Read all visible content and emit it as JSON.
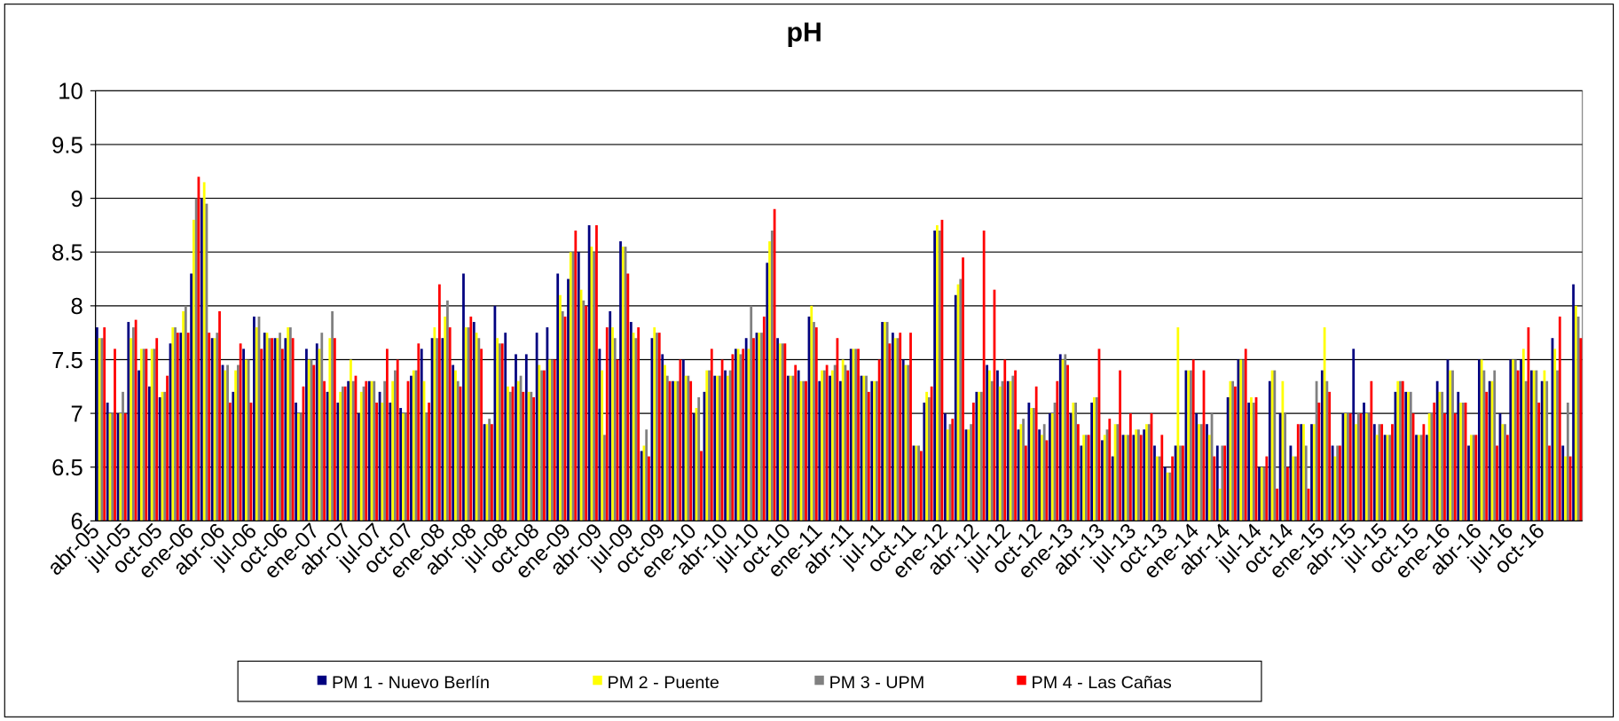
{
  "chart_data": {
    "type": "bar",
    "title": "pH",
    "categories": [
      "abr-05",
      null,
      null,
      "jul-05",
      null,
      null,
      "oct-05",
      null,
      null,
      "ene-06",
      null,
      null,
      "abr-06",
      null,
      null,
      "jul-06",
      null,
      null,
      "oct-06",
      null,
      null,
      "ene-07",
      null,
      null,
      "abr-07",
      null,
      null,
      "jul-07",
      null,
      null,
      "oct-07",
      null,
      null,
      "ene-08",
      null,
      null,
      "abr-08",
      null,
      null,
      "jul-08",
      null,
      null,
      "oct-08",
      null,
      null,
      "ene-09",
      null,
      null,
      "abr-09",
      null,
      null,
      "jul-09",
      null,
      null,
      "oct-09",
      null,
      null,
      "ene-10",
      null,
      null,
      "abr-10",
      null,
      null,
      "jul-10",
      null,
      null,
      "oct-10",
      null,
      null,
      "ene-11",
      null,
      null,
      "abr-11",
      null,
      null,
      "jul-11",
      null,
      null,
      "oct-11",
      null,
      null,
      "ene-12",
      null,
      null,
      "abr-12",
      null,
      null,
      "jul-12",
      null,
      null,
      "oct-12",
      null,
      null,
      "ene-13",
      null,
      null,
      "abr-13",
      null,
      null,
      "jul-13",
      null,
      null,
      "oct-13",
      null,
      null,
      "ene-14",
      null,
      null,
      "abr-14",
      null,
      null,
      "jul-14",
      null,
      null,
      "oct-14",
      null,
      null,
      "ene-15",
      null,
      null,
      "abr-15",
      null,
      null,
      "jul-15",
      null,
      null,
      "oct-15",
      null,
      null,
      "ene-16",
      null,
      null,
      "abr-16",
      null,
      null,
      "jul-16",
      null,
      null,
      "oct-16",
      null,
      null,
      null
    ],
    "series": [
      {
        "name": "PM 1 - Nuevo Berlín",
        "color": "#000080",
        "values": [
          7.8,
          7.1,
          7.0,
          7.85,
          7.4,
          7.25,
          7.15,
          7.65,
          7.75,
          8.3,
          9.0,
          7.7,
          7.45,
          7.2,
          7.6,
          7.9,
          7.75,
          7.7,
          7.7,
          7.1,
          7.6,
          7.65,
          7.2,
          7.1,
          7.3,
          7.0,
          7.3,
          7.2,
          7.1,
          7.05,
          7.35,
          7.6,
          7.7,
          7.7,
          7.45,
          8.3,
          7.85,
          6.9,
          8.0,
          7.75,
          7.55,
          7.55,
          7.75,
          7.8,
          8.3,
          8.25,
          8.5,
          8.75,
          7.6,
          7.95,
          8.6,
          7.85,
          6.65,
          7.7,
          7.55,
          7.3,
          7.5,
          7.0,
          7.2,
          7.35,
          7.4,
          7.6,
          7.7,
          7.75,
          8.4,
          7.7,
          7.35,
          7.4,
          7.9,
          7.3,
          7.35,
          7.3,
          7.6,
          7.35,
          7.3,
          7.85,
          7.75,
          7.5,
          6.7,
          7.1,
          8.7,
          7.0,
          8.1,
          6.85,
          7.2,
          7.45,
          7.4,
          7.3,
          6.85,
          7.1,
          6.85,
          7.0,
          7.55,
          7.0,
          6.7,
          7.1,
          6.75,
          6.6,
          6.8,
          6.8,
          6.85,
          6.7,
          6.5,
          6.7,
          7.4,
          7.0,
          6.9,
          6.7,
          7.15,
          7.5,
          7.1,
          6.5,
          7.3,
          7.0,
          6.7,
          6.9,
          6.9,
          7.4,
          6.7,
          7.0,
          7.6,
          7.1,
          6.9,
          6.8,
          7.2,
          7.2,
          6.8,
          6.8,
          7.3,
          7.5,
          7.2,
          6.7,
          7.5,
          7.3,
          7.0,
          7.5,
          7.5,
          7.4,
          7.3,
          7.7,
          6.7,
          8.2
        ]
      },
      {
        "name": "PM 2 - Puente",
        "color": "#ffff00",
        "values": [
          7.7,
          7.0,
          7.0,
          7.7,
          7.6,
          7.6,
          7.2,
          7.8,
          7.95,
          8.8,
          9.15,
          7.7,
          7.4,
          7.4,
          7.5,
          7.8,
          7.75,
          7.7,
          7.8,
          7.0,
          7.5,
          7.6,
          7.7,
          7.2,
          7.5,
          7.2,
          7.3,
          7.1,
          7.3,
          7.0,
          7.4,
          7.3,
          7.8,
          7.9,
          7.4,
          7.8,
          7.75,
          6.9,
          7.7,
          7.25,
          7.3,
          7.2,
          7.45,
          7.5,
          8.1,
          8.5,
          8.15,
          8.55,
          7.4,
          7.8,
          8.55,
          7.75,
          6.7,
          7.8,
          7.45,
          7.3,
          7.35,
          7.05,
          7.4,
          7.35,
          7.35,
          7.6,
          7.6,
          7.75,
          8.6,
          7.65,
          7.35,
          7.3,
          8.0,
          7.4,
          7.4,
          7.5,
          7.6,
          7.35,
          7.3,
          7.85,
          7.7,
          7.45,
          6.7,
          7.2,
          8.75,
          6.85,
          8.2,
          6.85,
          7.2,
          7.4,
          7.25,
          7.3,
          6.9,
          7.05,
          6.8,
          7.0,
          7.5,
          7.1,
          6.8,
          7.15,
          6.8,
          6.9,
          6.8,
          6.85,
          6.9,
          6.6,
          6.45,
          7.8,
          7.4,
          6.9,
          6.8,
          6.3,
          7.3,
          7.5,
          7.15,
          6.5,
          7.4,
          7.3,
          6.6,
          6.9,
          6.9,
          7.8,
          6.6,
          7.0,
          6.9,
          7.0,
          6.8,
          6.8,
          7.3,
          7.2,
          6.8,
          7.0,
          7.2,
          7.4,
          7.1,
          6.8,
          7.5,
          7.3,
          6.9,
          7.5,
          7.6,
          7.4,
          7.4,
          7.6,
          6.6,
          8.0
        ]
      },
      {
        "name": "PM 3 - UPM",
        "color": "#808080",
        "values": [
          7.7,
          7.0,
          7.2,
          7.8,
          7.6,
          7.6,
          7.2,
          7.8,
          8.0,
          9.0,
          8.95,
          7.75,
          7.45,
          7.45,
          7.5,
          7.9,
          7.7,
          7.75,
          7.8,
          7.0,
          7.5,
          7.75,
          7.95,
          7.25,
          7.3,
          7.25,
          7.3,
          7.3,
          7.4,
          7.0,
          7.4,
          7.0,
          7.7,
          8.05,
          7.3,
          7.8,
          7.7,
          6.95,
          7.65,
          7.2,
          7.35,
          7.2,
          7.4,
          7.5,
          7.95,
          8.5,
          8.05,
          8.5,
          6.8,
          7.7,
          8.55,
          7.7,
          6.85,
          7.75,
          7.35,
          7.3,
          7.35,
          7.15,
          7.4,
          7.35,
          7.4,
          7.55,
          8.0,
          7.75,
          8.7,
          7.65,
          7.35,
          7.3,
          7.85,
          7.4,
          7.45,
          7.45,
          7.6,
          7.35,
          7.3,
          7.85,
          7.7,
          7.45,
          6.7,
          7.15,
          8.7,
          6.9,
          8.25,
          6.9,
          7.2,
          7.3,
          7.3,
          7.35,
          6.95,
          7.05,
          6.9,
          7.1,
          7.55,
          7.1,
          6.8,
          7.15,
          6.85,
          6.9,
          6.8,
          6.85,
          6.9,
          6.6,
          6.45,
          6.7,
          7.4,
          6.9,
          7.0,
          6.7,
          7.3,
          7.5,
          7.1,
          6.5,
          7.4,
          7.0,
          6.6,
          6.7,
          7.3,
          7.3,
          6.7,
          7.0,
          7.0,
          7.0,
          6.9,
          6.8,
          7.3,
          7.2,
          6.8,
          7.0,
          7.2,
          7.4,
          7.1,
          6.8,
          7.4,
          7.4,
          6.9,
          7.5,
          7.3,
          7.4,
          7.3,
          7.4,
          7.1,
          7.9
        ]
      },
      {
        "name": "PM 4 - Las Cañas",
        "color": "#ff0000",
        "values": [
          7.8,
          7.6,
          7.0,
          7.87,
          7.6,
          7.7,
          7.35,
          7.75,
          7.75,
          9.2,
          7.75,
          7.95,
          7.1,
          7.65,
          7.1,
          7.6,
          7.7,
          7.6,
          7.7,
          7.25,
          7.45,
          7.3,
          7.7,
          7.25,
          7.35,
          7.3,
          7.1,
          7.6,
          7.5,
          7.3,
          7.65,
          7.1,
          8.2,
          7.8,
          7.25,
          7.9,
          7.6,
          6.9,
          7.65,
          7.25,
          7.2,
          7.15,
          7.4,
          7.5,
          7.9,
          8.7,
          8.0,
          8.75,
          7.8,
          7.5,
          8.3,
          7.8,
          6.6,
          7.75,
          7.3,
          7.5,
          7.3,
          6.65,
          7.6,
          7.5,
          7.55,
          7.6,
          7.7,
          7.9,
          8.9,
          7.65,
          7.45,
          7.3,
          7.8,
          7.45,
          7.7,
          7.4,
          7.6,
          7.2,
          7.5,
          7.65,
          7.75,
          7.75,
          6.65,
          7.25,
          8.8,
          6.95,
          8.45,
          7.1,
          8.7,
          8.15,
          7.5,
          7.4,
          6.7,
          7.25,
          6.75,
          7.3,
          7.45,
          6.9,
          6.8,
          7.6,
          6.95,
          7.4,
          7.0,
          6.8,
          7.0,
          6.8,
          6.6,
          6.7,
          7.5,
          7.4,
          6.6,
          6.7,
          7.25,
          7.6,
          7.15,
          6.6,
          6.3,
          6.5,
          6.9,
          6.3,
          7.1,
          7.2,
          6.7,
          7.0,
          7.0,
          7.3,
          6.9,
          6.9,
          7.3,
          7.0,
          6.9,
          7.1,
          7.0,
          7.0,
          7.1,
          6.8,
          7.2,
          6.7,
          6.8,
          7.4,
          7.8,
          7.1,
          6.7,
          7.9,
          6.6,
          7.7
        ]
      }
    ],
    "ylim": [
      6,
      10
    ],
    "yticks": [
      6,
      6.5,
      7,
      7.5,
      8,
      8.5,
      9,
      9.5,
      10
    ],
    "grid": true,
    "legend": "bottom"
  }
}
